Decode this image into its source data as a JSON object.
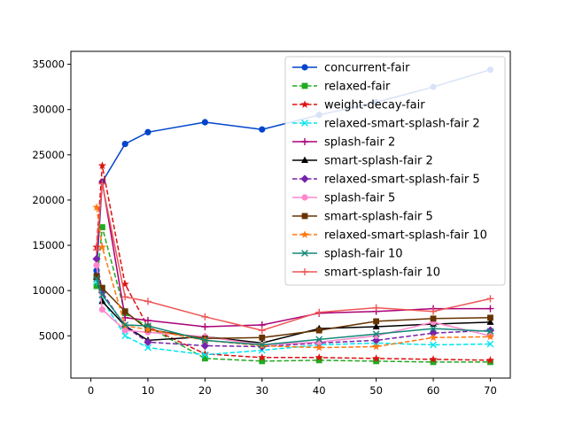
{
  "chart_data": {
    "type": "line",
    "title": "",
    "xlabel": "",
    "ylabel": "",
    "xlim": [
      -3.5,
      73.5
    ],
    "ylim": [
      330,
      36430
    ],
    "xticks": [
      0,
      10,
      20,
      30,
      40,
      50,
      60,
      70
    ],
    "yticks": [
      5000,
      10000,
      15000,
      20000,
      25000,
      30000,
      35000
    ],
    "grid": false,
    "legend_position": "upper-right",
    "series": [
      {
        "name": "concurrent-fair",
        "color": "#0044cc",
        "dash": "solid",
        "marker": "circle",
        "x": [
          1,
          2,
          6,
          10,
          20,
          30,
          40,
          50,
          60,
          70
        ],
        "y": [
          12200,
          22000,
          26200,
          27500,
          28600,
          27800,
          29400,
          30800,
          32500,
          34400
        ]
      },
      {
        "name": "relaxed-fair",
        "color": "#22aa22",
        "dash": "dashed",
        "marker": "square",
        "x": [
          1,
          2,
          6,
          10,
          20,
          30,
          40,
          50,
          60,
          70
        ],
        "y": [
          10500,
          17000,
          7500,
          6000,
          2500,
          2200,
          2300,
          2200,
          2100,
          2100
        ]
      },
      {
        "name": "weight-decay-fair",
        "color": "#dd1111",
        "dash": "dashed",
        "marker": "star",
        "x": [
          1,
          2,
          6,
          10,
          20,
          30,
          40,
          50,
          60,
          70
        ],
        "y": [
          14800,
          23800,
          10700,
          6000,
          3000,
          2600,
          2600,
          2500,
          2400,
          2300
        ]
      },
      {
        "name": "relaxed-smart-splash-fair 2",
        "color": "#00e5ee",
        "dash": "dashed",
        "marker": "x",
        "x": [
          1,
          2,
          6,
          10,
          20,
          30,
          40,
          50,
          60,
          70
        ],
        "y": [
          11000,
          9000,
          5000,
          3700,
          2900,
          3400,
          4000,
          4200,
          4000,
          4100
        ]
      },
      {
        "name": "splash-fair 2",
        "color": "#aa0077",
        "dash": "solid",
        "marker": "plus",
        "x": [
          1,
          2,
          6,
          10,
          20,
          30,
          40,
          50,
          60,
          70
        ],
        "y": [
          13500,
          22000,
          7000,
          6700,
          6000,
          6200,
          7500,
          7700,
          8000,
          8000
        ]
      },
      {
        "name": "smart-splash-fair 2",
        "color": "#000000",
        "dash": "solid",
        "marker": "triangle",
        "x": [
          1,
          2,
          6,
          10,
          20,
          30,
          40,
          50,
          60,
          70
        ],
        "y": [
          11500,
          8800,
          6100,
          4500,
          4900,
          4200,
          5800,
          6000,
          6300,
          6500
        ]
      },
      {
        "name": "relaxed-smart-splash-fair 5",
        "color": "#7722aa",
        "dash": "dashed",
        "marker": "diamond",
        "x": [
          1,
          2,
          6,
          10,
          20,
          30,
          40,
          50,
          60,
          70
        ],
        "y": [
          13500,
          9800,
          6000,
          4300,
          3900,
          3800,
          4200,
          4500,
          5300,
          5600
        ]
      },
      {
        "name": "splash-fair 5",
        "color": "#ff88cc",
        "dash": "solid",
        "marker": "circle",
        "x": [
          1,
          2,
          6,
          10,
          20,
          30,
          40,
          50,
          60,
          70
        ],
        "y": [
          12800,
          7900,
          5600,
          5400,
          4900,
          4000,
          4300,
          5000,
          6500,
          5000
        ]
      },
      {
        "name": "smart-splash-fair 5",
        "color": "#663300",
        "dash": "solid",
        "marker": "square",
        "x": [
          1,
          2,
          6,
          10,
          20,
          30,
          40,
          50,
          60,
          70
        ],
        "y": [
          11600,
          10300,
          7700,
          5700,
          4700,
          4800,
          5600,
          6600,
          6900,
          7000
        ]
      },
      {
        "name": "relaxed-smart-splash-fair 10",
        "color": "#ff7711",
        "dash": "dashed",
        "marker": "star",
        "x": [
          1,
          2,
          6,
          10,
          20,
          30,
          40,
          50,
          60,
          70
        ],
        "y": [
          19200,
          14800,
          6100,
          5700,
          4500,
          3900,
          3700,
          3800,
          4800,
          4900
        ]
      },
      {
        "name": "splash-fair 10",
        "color": "#118877",
        "dash": "solid",
        "marker": "x",
        "x": [
          1,
          2,
          6,
          10,
          20,
          30,
          40,
          50,
          60,
          70
        ],
        "y": [
          11300,
          9500,
          6200,
          6100,
          4500,
          4000,
          4600,
          5200,
          5800,
          5500
        ]
      },
      {
        "name": "smart-splash-fair 10",
        "color": "#ee5555",
        "dash": "solid",
        "marker": "plus",
        "x": [
          1,
          2,
          6,
          10,
          20,
          30,
          40,
          50,
          60,
          70
        ],
        "y": [
          14500,
          21800,
          9300,
          8800,
          7100,
          5600,
          7600,
          8100,
          7700,
          9100
        ]
      }
    ]
  }
}
